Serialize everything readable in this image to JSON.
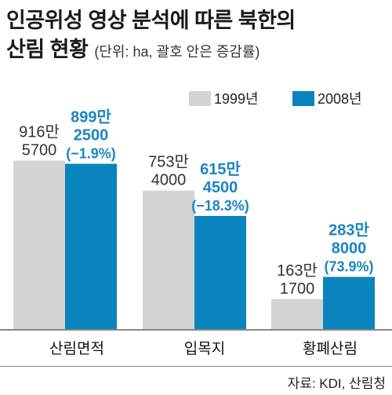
{
  "title_line1": "인공위성 영상 분석에 따른 북한의",
  "title_line2": "산림 현황",
  "unit": "(단위: ha, 괄호 안은 증감률)",
  "source": "자료: KDI, 산림청",
  "colors": {
    "y1999": "#d4d4d4",
    "y2008": "#0a84bf",
    "text2008": "#1a86c2",
    "text1999": "#333333"
  },
  "chart_data": {
    "type": "bar",
    "categories": [
      "산림면적",
      "입목지",
      "황폐산림"
    ],
    "series": [
      {
        "name": "1999년",
        "values": [
          9165700,
          7534000,
          1631700
        ],
        "labels": [
          [
            "916만",
            "5700"
          ],
          [
            "753만",
            "4000"
          ],
          [
            "163만",
            "1700"
          ]
        ]
      },
      {
        "name": "2008년",
        "values": [
          8992500,
          6154500,
          2838000
        ],
        "labels": [
          [
            "899만",
            "2500",
            "(−1.9%)"
          ],
          [
            "615만",
            "4500",
            "(−18.3%)"
          ],
          [
            "283만",
            "8000",
            "(73.9%)"
          ]
        ]
      }
    ],
    "ylim": [
      0,
      10000000
    ]
  }
}
